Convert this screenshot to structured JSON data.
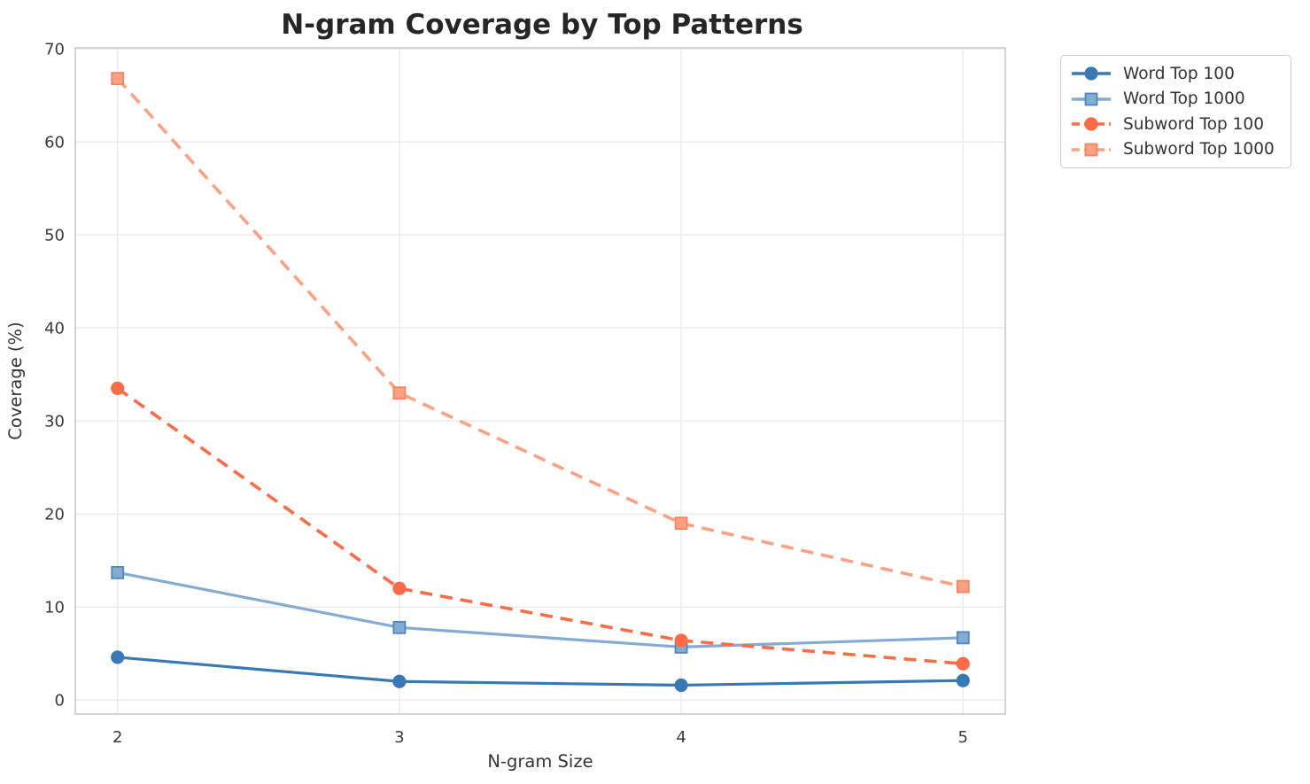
{
  "chart_data": {
    "type": "line",
    "title": "N-gram Coverage by Top Patterns",
    "xlabel": "N-gram Size",
    "ylabel": "Coverage (%)",
    "x": [
      2,
      3,
      4,
      5
    ],
    "xtick_labels": [
      "2",
      "3",
      "4",
      "5"
    ],
    "ytick_values": [
      0,
      10,
      20,
      30,
      40,
      50,
      60,
      70
    ],
    "ytick_labels": [
      "0",
      "10",
      "20",
      "30",
      "40",
      "50",
      "60",
      "70"
    ],
    "xlim": [
      1.85,
      5.15
    ],
    "ylim": [
      -1.5,
      70.1
    ],
    "grid": true,
    "legend_position": "outside-upper-right",
    "series": [
      {
        "name": "Word Top 100",
        "values": [
          4.6,
          2.0,
          1.6,
          2.1
        ],
        "color": "#3878B4",
        "marker": "circle",
        "marker_edge": "#3878B4",
        "line_style": "solid"
      },
      {
        "name": "Word Top 1000",
        "values": [
          13.7,
          7.8,
          5.7,
          6.7
        ],
        "color": "#85ABD3",
        "marker": "square",
        "marker_edge": "#4E86BC",
        "line_style": "solid"
      },
      {
        "name": "Subword Top 100",
        "values": [
          33.5,
          12.0,
          6.4,
          3.9
        ],
        "color": "#FA6B47",
        "marker": "circle",
        "marker_edge": "#FA6B47",
        "line_style": "dashed"
      },
      {
        "name": "Subword Top 1000",
        "values": [
          66.8,
          33.0,
          19.0,
          12.2
        ],
        "color": "#FCA183",
        "marker": "square",
        "marker_edge": "#F9825F",
        "line_style": "dashed"
      }
    ]
  },
  "colors": {
    "background": "#ffffff",
    "grid": "#ebebeb",
    "spine": "#cfcfcf",
    "title": "#262626",
    "tick_label": "#3a3a3a",
    "axis_label": "#333333",
    "legend_border": "#cbcbcb",
    "legend_text": "#333333"
  }
}
